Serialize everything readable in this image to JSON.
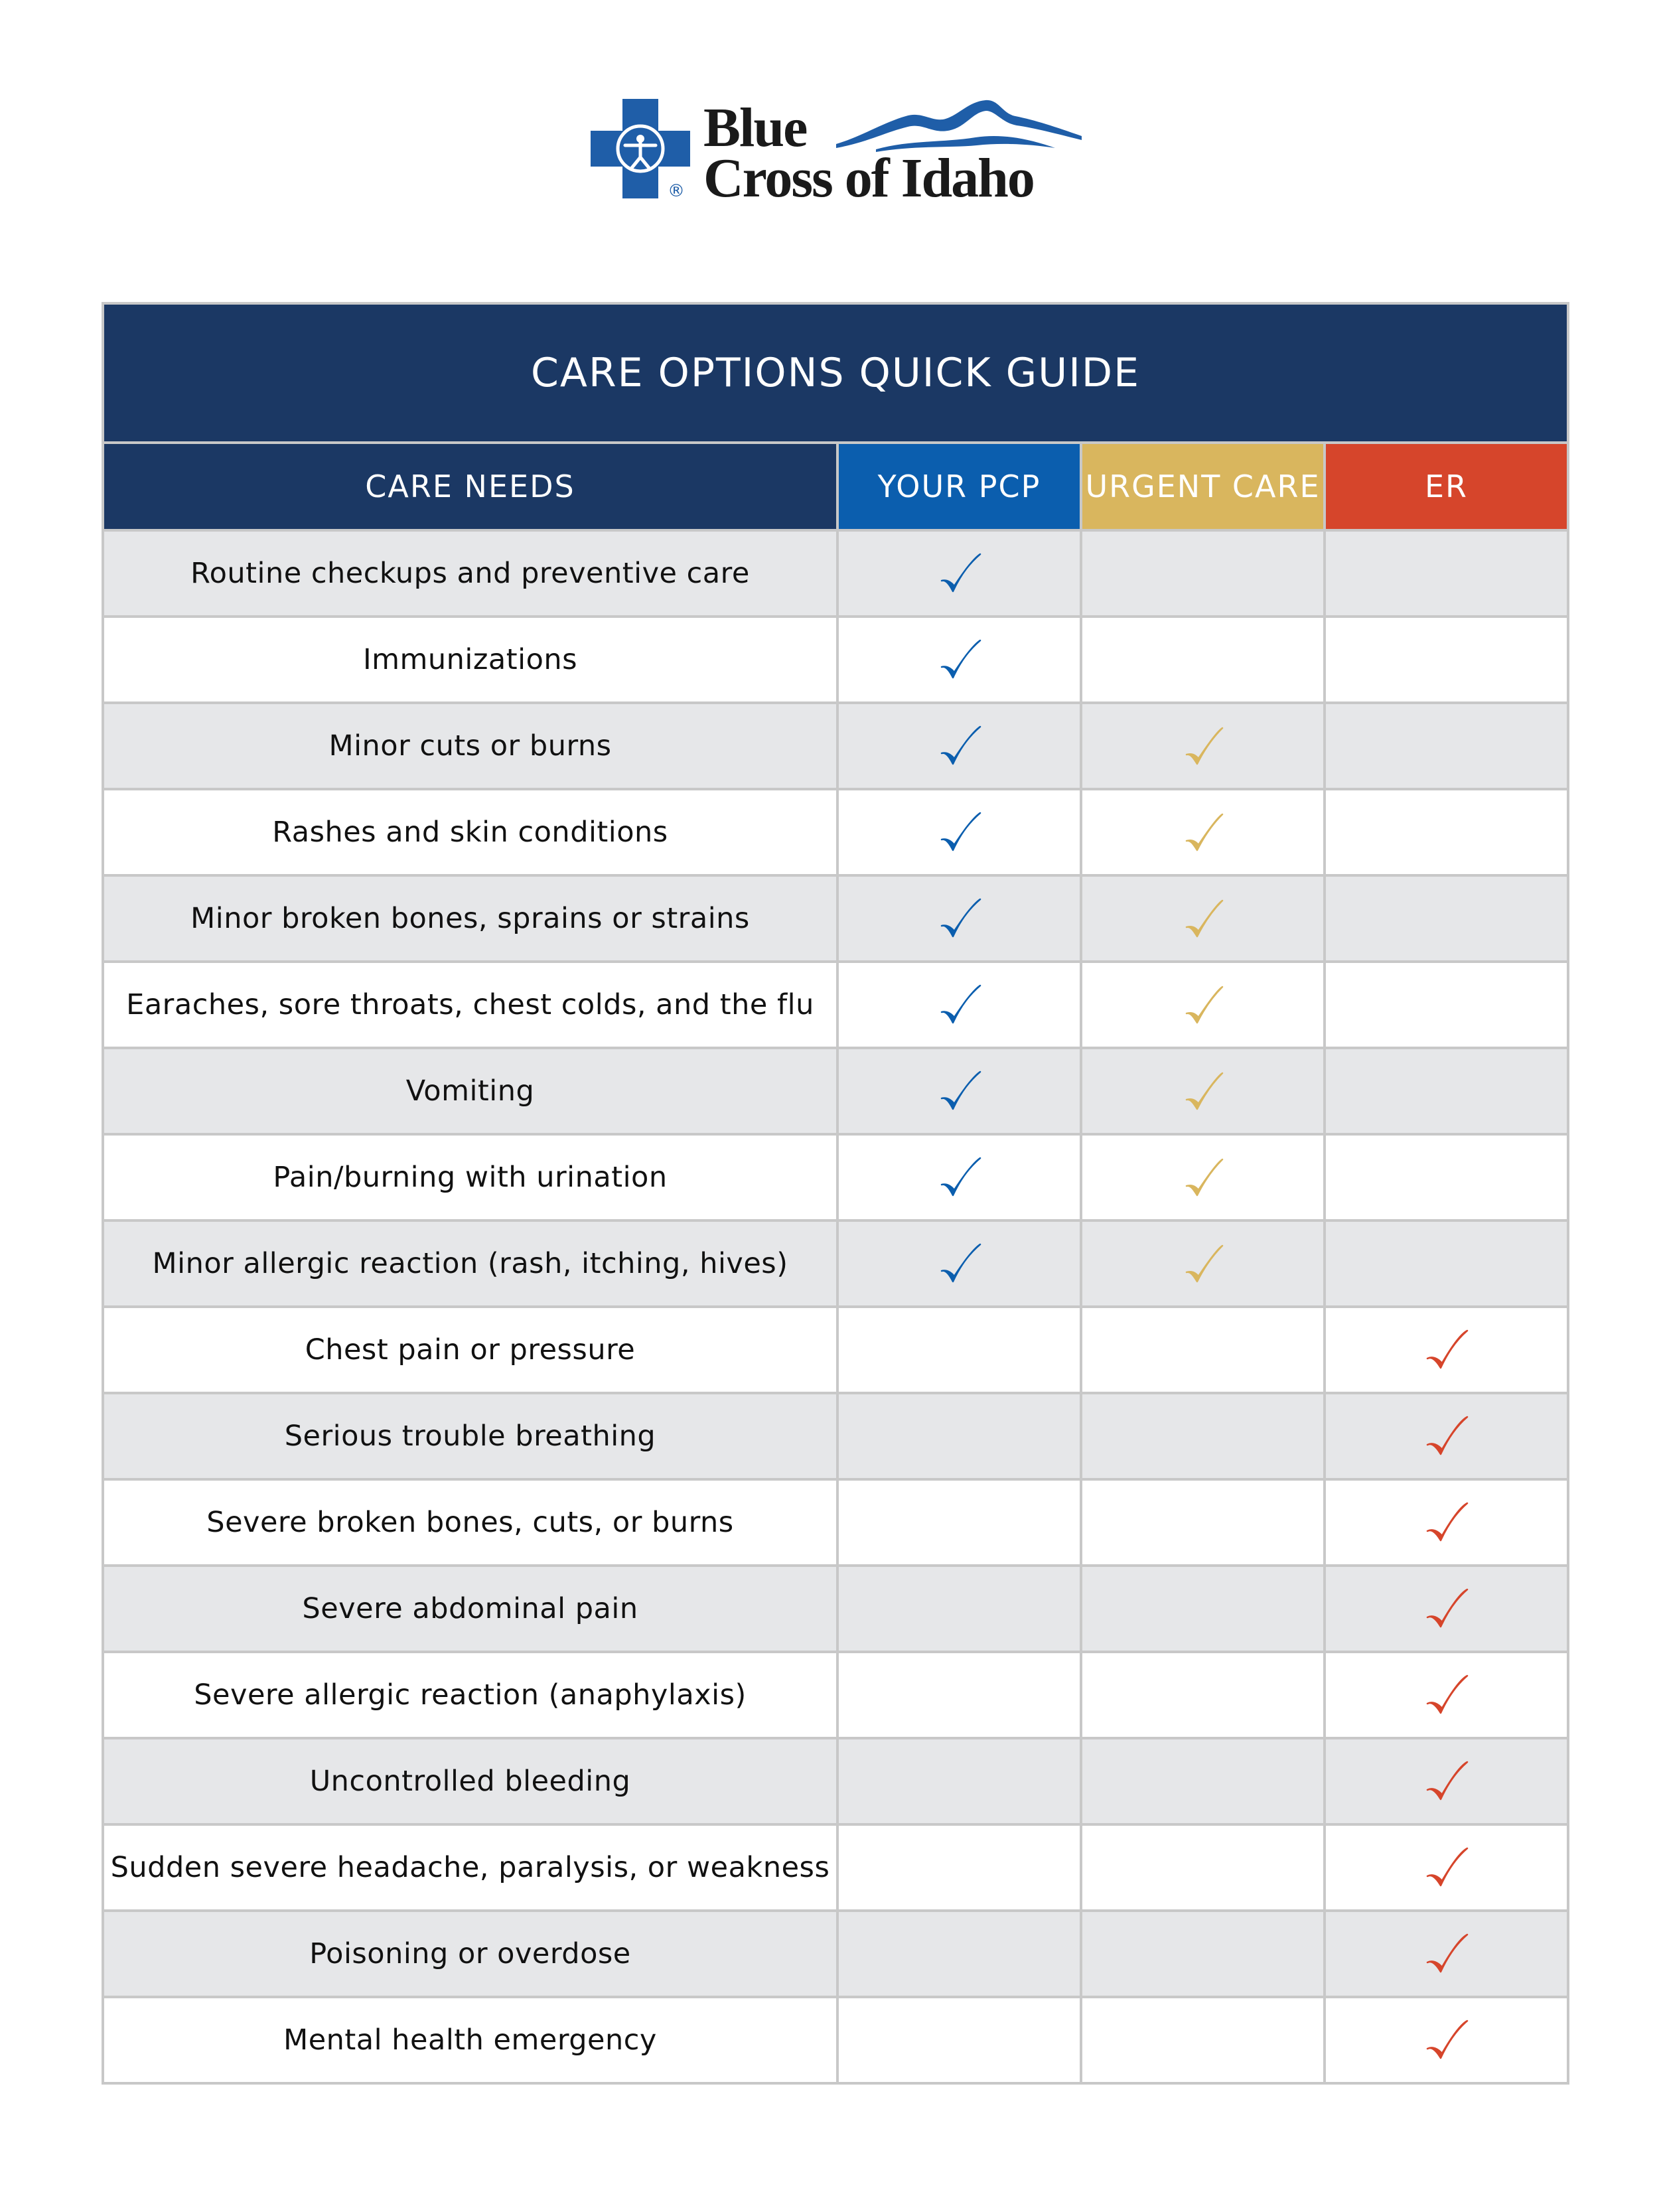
{
  "logo": {
    "line1": "Blue",
    "line2": "Cross of Idaho",
    "registered": "®"
  },
  "colors": {
    "navy": "#1b3864",
    "pcp_blue": "#0b5eae",
    "urgent_gold": "#d9b65e",
    "er_red": "#d6452b",
    "row_gray": "#e6e7e9"
  },
  "guide": {
    "title": "CARE OPTIONS QUICK GUIDE",
    "columns": [
      "CARE NEEDS",
      "YOUR PCP",
      "URGENT CARE",
      "ER"
    ],
    "check_icon": "check-mark-icon",
    "rows": [
      {
        "need": "Routine checkups and preventive care",
        "pcp": true,
        "urgent": false,
        "er": false
      },
      {
        "need": "Immunizations",
        "pcp": true,
        "urgent": false,
        "er": false
      },
      {
        "need": "Minor cuts or burns",
        "pcp": true,
        "urgent": true,
        "er": false
      },
      {
        "need": "Rashes and skin conditions",
        "pcp": true,
        "urgent": true,
        "er": false
      },
      {
        "need": "Minor broken bones, sprains or strains",
        "pcp": true,
        "urgent": true,
        "er": false
      },
      {
        "need": "Earaches, sore throats, chest colds, and the flu",
        "pcp": true,
        "urgent": true,
        "er": false
      },
      {
        "need": "Vomiting",
        "pcp": true,
        "urgent": true,
        "er": false
      },
      {
        "need": "Pain/burning with urination",
        "pcp": true,
        "urgent": true,
        "er": false
      },
      {
        "need": "Minor allergic reaction (rash, itching, hives)",
        "pcp": true,
        "urgent": true,
        "er": false
      },
      {
        "need": "Chest pain or pressure",
        "pcp": false,
        "urgent": false,
        "er": true
      },
      {
        "need": "Serious trouble breathing",
        "pcp": false,
        "urgent": false,
        "er": true
      },
      {
        "need": "Severe broken bones, cuts, or burns",
        "pcp": false,
        "urgent": false,
        "er": true
      },
      {
        "need": "Severe abdominal pain",
        "pcp": false,
        "urgent": false,
        "er": true
      },
      {
        "need": "Severe allergic reaction (anaphylaxis)",
        "pcp": false,
        "urgent": false,
        "er": true
      },
      {
        "need": "Uncontrolled bleeding",
        "pcp": false,
        "urgent": false,
        "er": true
      },
      {
        "need": "Sudden severe headache, paralysis, or weakness",
        "pcp": false,
        "urgent": false,
        "er": true
      },
      {
        "need": "Poisoning or overdose",
        "pcp": false,
        "urgent": false,
        "er": true
      },
      {
        "need": "Mental health emergency",
        "pcp": false,
        "urgent": false,
        "er": true
      }
    ]
  }
}
